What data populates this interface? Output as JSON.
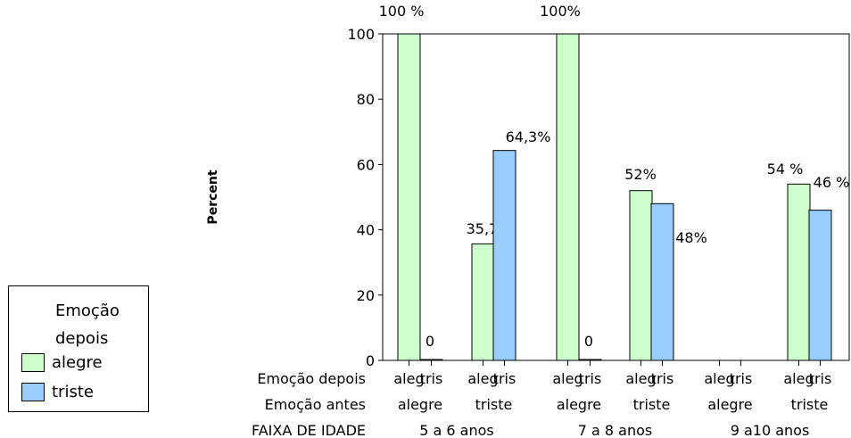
{
  "chart_data": {
    "type": "bar",
    "ylabel": "Percent",
    "ylim": [
      0,
      100
    ],
    "yticks": [
      0,
      20,
      40,
      60,
      80,
      100
    ],
    "series": [
      {
        "name": "alegre",
        "color": "#ccffcc"
      },
      {
        "name": "triste",
        "color": "#99ccff"
      }
    ],
    "bars": [
      {
        "group": "5 a 6 anos",
        "antes": "alegre",
        "depois": "aleg",
        "value": 100,
        "label": "100 %"
      },
      {
        "group": "5 a 6 anos",
        "antes": "alegre",
        "depois": "tris",
        "value": 0,
        "label": "0"
      },
      {
        "group": "5 a 6 anos",
        "antes": "triste",
        "depois": "aleg",
        "value": 35.7,
        "label": "35,7%"
      },
      {
        "group": "5 a 6 anos",
        "antes": "triste",
        "depois": "tris",
        "value": 64.3,
        "label": "64,3%"
      },
      {
        "group": "7 a 8 anos",
        "antes": "alegre",
        "depois": "aleg",
        "value": 100,
        "label": "100%"
      },
      {
        "group": "7 a 8 anos",
        "antes": "alegre",
        "depois": "tris",
        "value": 0,
        "label": "0"
      },
      {
        "group": "7 a 8 anos",
        "antes": "triste",
        "depois": "aleg",
        "value": 52,
        "label": "52%"
      },
      {
        "group": "7 a 8 anos",
        "antes": "triste",
        "depois": "tris",
        "value": 48,
        "label": "48%"
      },
      {
        "group": "9 a10 anos",
        "antes": "alegre",
        "depois": "aleg",
        "value": null,
        "label": ""
      },
      {
        "group": "9 a10 anos",
        "antes": "alegre",
        "depois": "tris",
        "value": null,
        "label": ""
      },
      {
        "group": "9 a10 anos",
        "antes": "triste",
        "depois": "aleg",
        "value": 54,
        "label": "54 %"
      },
      {
        "group": "9 a10 anos",
        "antes": "triste",
        "depois": "tris",
        "value": 46,
        "label": "46 %"
      }
    ],
    "row_labels": {
      "depois": "Emoção depois",
      "antes": "Emoção antes",
      "faixa": "FAIXA DE IDADE"
    },
    "groups": [
      "5 a 6 anos",
      "7 a 8 anos",
      "9 a10 anos"
    ],
    "legend": {
      "title_line1": "Emoção",
      "title_line2": "depois",
      "items": [
        "alegre",
        "triste"
      ],
      "position": "bottom-left"
    }
  }
}
